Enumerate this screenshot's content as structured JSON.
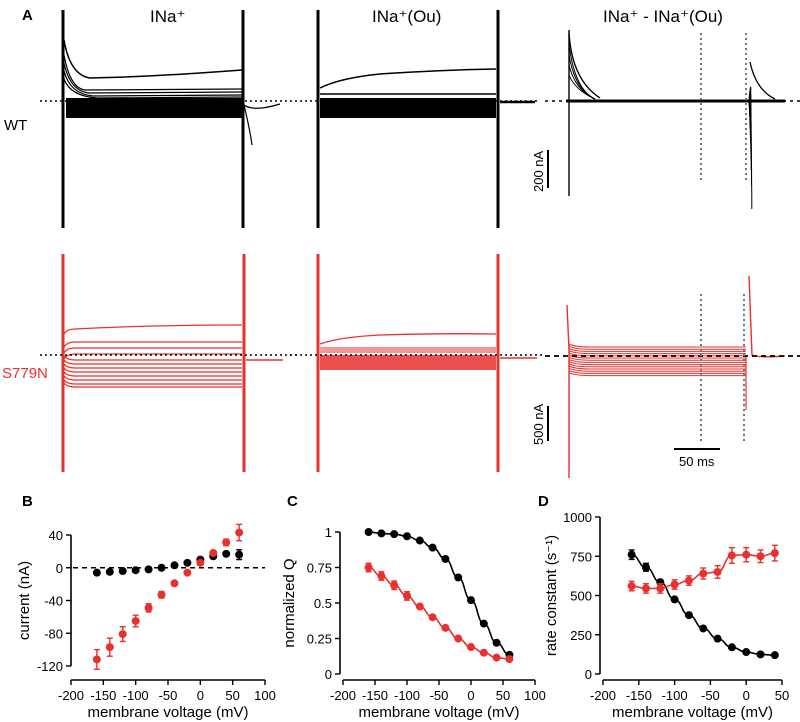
{
  "colors": {
    "wt": "#000000",
    "mutant": "#e8302f",
    "guide": "#6b7a7a"
  },
  "panelA": {
    "letter": "A",
    "columns": [
      {
        "title_main": "INa",
        "title_sup": "+",
        "title_rest": ""
      },
      {
        "title_main": "INa",
        "title_sup": "+",
        "title_rest": "(Ou)"
      },
      {
        "title_main": "INa",
        "title_sup": "+",
        "title_rest": " - INa",
        "title_sup2": "+",
        "title_rest2": "(Ou)"
      }
    ],
    "col_titles": [
      "INa⁺",
      "INa⁺(Ou)",
      "INa⁺ - INa⁺(Ou)"
    ],
    "rows": [
      {
        "label": "WT",
        "scale_bar": "200 nA"
      },
      {
        "label": "S779N",
        "scale_bar": "500 nA"
      }
    ],
    "time_scale": "50 ms"
  },
  "chart_data": [
    {
      "panel": "B",
      "type": "scatter",
      "title": "",
      "xlabel": "membrane voltage (mV)",
      "ylabel": "current (nA)",
      "xlim": [
        -200,
        100
      ],
      "ylim": [
        -120,
        40
      ],
      "xticks": [
        -200,
        -150,
        -100,
        -50,
        0,
        50,
        100
      ],
      "yticks": [
        -120,
        -80,
        -40,
        0,
        40
      ],
      "zero_line": "dashed",
      "grid": false,
      "legend": "none",
      "x": [
        -160,
        -140,
        -120,
        -100,
        -80,
        -60,
        -40,
        -20,
        0,
        20,
        40,
        60
      ],
      "series": [
        {
          "name": "WT",
          "color": "#000000",
          "values": [
            -6,
            -5,
            -4,
            -3,
            -2,
            0,
            3,
            6,
            10,
            14,
            17,
            16
          ],
          "errors": [
            1,
            1,
            1,
            1,
            1,
            1,
            1,
            1,
            1,
            1,
            2,
            6
          ]
        },
        {
          "name": "S779N",
          "color": "#e8302f",
          "values": [
            -112,
            -97,
            -81,
            -65,
            -49,
            -33,
            -19,
            -6,
            6,
            18,
            31,
            43
          ],
          "errors": [
            12,
            11,
            9,
            7,
            5,
            4,
            2,
            2,
            2,
            3,
            4,
            10
          ]
        }
      ]
    },
    {
      "panel": "C",
      "type": "line",
      "title": "",
      "xlabel": "membrane voltage (mV)",
      "ylabel": "normalized Q",
      "xlim": [
        -200,
        100
      ],
      "ylim": [
        0,
        1
      ],
      "xticks": [
        -200,
        -150,
        -100,
        -50,
        0,
        50,
        100
      ],
      "yticks": [
        0,
        0.25,
        0.5,
        0.75,
        1
      ],
      "yticklabels": [
        "0",
        "0.25",
        "0.5",
        "0.75",
        "1"
      ],
      "grid": false,
      "legend": "none",
      "x": [
        -160,
        -140,
        -120,
        -100,
        -80,
        -60,
        -40,
        -20,
        0,
        20,
        40,
        60
      ],
      "series": [
        {
          "name": "WT",
          "color": "#000000",
          "values": [
            1.0,
            0.99,
            0.985,
            0.97,
            0.94,
            0.89,
            0.81,
            0.68,
            0.52,
            0.355,
            0.22,
            0.135
          ],
          "errors": [
            0.01,
            0.01,
            0.01,
            0.01,
            0.01,
            0.01,
            0.01,
            0.01,
            0.01,
            0.01,
            0.01,
            0.01
          ]
        },
        {
          "name": "S779N",
          "color": "#e8302f",
          "values": [
            0.75,
            0.69,
            0.625,
            0.55,
            0.475,
            0.4,
            0.325,
            0.25,
            0.19,
            0.15,
            0.115,
            0.105
          ],
          "errors": [
            0.03,
            0.03,
            0.03,
            0.03,
            0.02,
            0.02,
            0.02,
            0.02,
            0.02,
            0.01,
            0.01,
            0.02
          ]
        }
      ]
    },
    {
      "panel": "D",
      "type": "line",
      "title": "",
      "xlabel": "membrane voltage (mV)",
      "ylabel": "rate constant (s⁻¹)",
      "xlim": [
        -200,
        50
      ],
      "ylim": [
        0,
        1000
      ],
      "xticks": [
        -200,
        -150,
        -100,
        -50,
        0,
        50
      ],
      "yticks": [
        0,
        250,
        500,
        750,
        1000
      ],
      "grid": false,
      "legend": "none",
      "x": [
        -160,
        -140,
        -120,
        -100,
        -80,
        -60,
        -40,
        -20,
        0,
        20,
        40
      ],
      "series": [
        {
          "name": "WT",
          "color": "#000000",
          "values": [
            760,
            680,
            585,
            475,
            375,
            290,
            225,
            170,
            140,
            125,
            120
          ],
          "errors": [
            30,
            25,
            10,
            10,
            10,
            10,
            10,
            10,
            10,
            10,
            10
          ]
        },
        {
          "name": "S779N",
          "color": "#e8302f",
          "values": [
            560,
            545,
            545,
            570,
            595,
            640,
            650,
            755,
            760,
            750,
            770
          ],
          "errors": [
            30,
            30,
            30,
            30,
            30,
            35,
            40,
            50,
            45,
            40,
            50
          ]
        }
      ]
    }
  ],
  "panel_letters": {
    "B": "B",
    "C": "C",
    "D": "D"
  }
}
